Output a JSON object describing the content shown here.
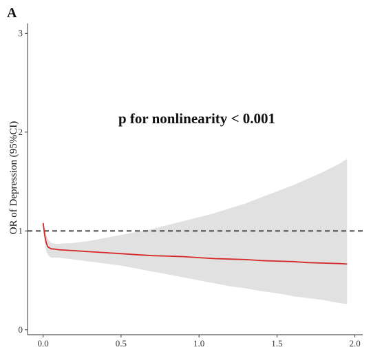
{
  "panel_label": "A",
  "annotation": "p for nonlinearity < 0.001",
  "colors": {
    "line": "#d62728",
    "ci_band": "#e1e1e1",
    "reference_line": "#1a1a1a",
    "axis": "#333333"
  },
  "chart_data": {
    "type": "area",
    "title": "",
    "xlabel": "",
    "ylabel": "OR of Depression (95%CI)",
    "xlim": [
      -0.1,
      2.05
    ],
    "ylim": [
      -0.05,
      3.1
    ],
    "x_ticks": [
      0.0,
      0.5,
      1.0,
      1.5,
      2.0
    ],
    "x_tick_labels": [
      "0.0",
      "0.5",
      "1.0",
      "1.5",
      "2.0"
    ],
    "y_ticks": [
      0,
      1,
      2,
      3
    ],
    "y_tick_labels": [
      "0",
      "1",
      "2",
      "3"
    ],
    "grid": false,
    "reference_line": {
      "y": 1,
      "style": "dashed"
    },
    "series": [
      {
        "x": [
          0.0,
          0.01,
          0.02,
          0.03,
          0.05,
          0.08,
          0.1,
          0.2,
          0.3,
          0.4,
          0.5,
          0.6,
          0.7,
          0.8,
          0.9,
          1.0,
          1.1,
          1.2,
          1.3,
          1.4,
          1.5,
          1.6,
          1.7,
          1.8,
          1.9,
          1.95
        ],
        "y": [
          1.08,
          0.96,
          0.88,
          0.84,
          0.82,
          0.815,
          0.81,
          0.8,
          0.79,
          0.78,
          0.77,
          0.76,
          0.75,
          0.745,
          0.74,
          0.73,
          0.72,
          0.715,
          0.71,
          0.7,
          0.695,
          0.69,
          0.68,
          0.675,
          0.67,
          0.665
        ],
        "lower": [
          1.05,
          0.88,
          0.8,
          0.76,
          0.73,
          0.73,
          0.73,
          0.71,
          0.69,
          0.67,
          0.65,
          0.62,
          0.59,
          0.56,
          0.53,
          0.5,
          0.47,
          0.44,
          0.42,
          0.39,
          0.37,
          0.34,
          0.32,
          0.3,
          0.27,
          0.26
        ],
        "upper": [
          1.12,
          1.03,
          0.96,
          0.92,
          0.88,
          0.87,
          0.87,
          0.88,
          0.9,
          0.93,
          0.96,
          0.99,
          1.02,
          1.06,
          1.1,
          1.14,
          1.18,
          1.23,
          1.28,
          1.34,
          1.4,
          1.46,
          1.53,
          1.6,
          1.68,
          1.73
        ]
      }
    ]
  }
}
